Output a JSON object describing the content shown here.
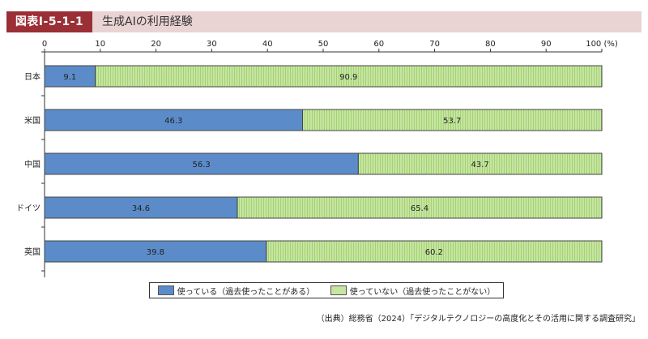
{
  "header": {
    "badge": "図表Ⅰ-5-1-1",
    "title": "生成AIの利用経験"
  },
  "chart_data": {
    "type": "bar",
    "orientation": "horizontal",
    "stacked": true,
    "categories": [
      "日本",
      "米国",
      "中国",
      "ドイツ",
      "英国"
    ],
    "series": [
      {
        "name": "使っている（過去使ったことがある）",
        "values": [
          9.1,
          46.3,
          56.3,
          34.6,
          39.8
        ],
        "color": "#5b8cc9"
      },
      {
        "name": "使っていない（過去使ったことがない）",
        "values": [
          90.9,
          53.7,
          43.7,
          65.4,
          60.2
        ],
        "color": "#c6e5a0"
      }
    ],
    "x_ticks": [
      "0",
      "10",
      "20",
      "30",
      "40",
      "50",
      "60",
      "70",
      "80",
      "90",
      "100 (%)"
    ],
    "xlim": [
      0,
      100
    ],
    "legend_position": "bottom"
  },
  "legend": {
    "item_1": "使っている（過去使ったことがある）",
    "item_2": "使っていない（過去使ったことがない）"
  },
  "source": "（出典）総務省（2024）「デジタルテクノロジーの高度化とその活用に関する調査研究」"
}
